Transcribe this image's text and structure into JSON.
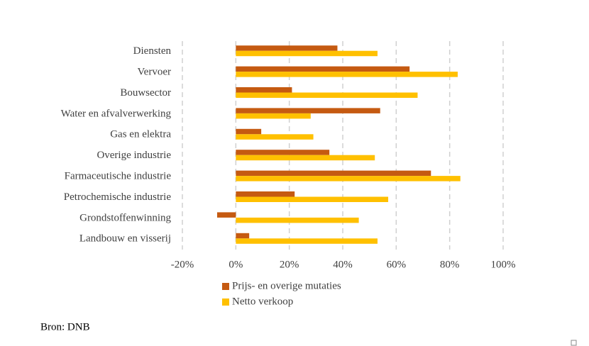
{
  "chart_data": {
    "type": "bar",
    "orientation": "horizontal",
    "categories": [
      "Diensten",
      "Vervoer",
      "Bouwsector",
      "Water en afvalverwerking",
      "Gas en elektra",
      "Overige industrie",
      "Farmaceutische industrie",
      "Petrochemische industrie",
      "Grondstoffenwinning",
      "Landbouw en visserij"
    ],
    "series": [
      {
        "name": "Prijs- en overige mutaties",
        "color": "#c55a11",
        "values": [
          38,
          65,
          21,
          54,
          9.5,
          35,
          73,
          22,
          -7,
          5
        ]
      },
      {
        "name": "Netto verkoop",
        "color": "#ffc000",
        "values": [
          53,
          83,
          68,
          28,
          29,
          52,
          84,
          57,
          46,
          53
        ]
      }
    ],
    "xlim": [
      -20,
      100
    ],
    "xticks": [
      {
        "value": -20,
        "label": "-20%"
      },
      {
        "value": 0,
        "label": "0%"
      },
      {
        "value": 20,
        "label": "20%"
      },
      {
        "value": 40,
        "label": "40%"
      },
      {
        "value": 60,
        "label": "60%"
      },
      {
        "value": 80,
        "label": "80%"
      },
      {
        "value": 100,
        "label": "100%"
      }
    ],
    "grid": true,
    "legend": "bottom",
    "source": "Bron: DNB"
  }
}
